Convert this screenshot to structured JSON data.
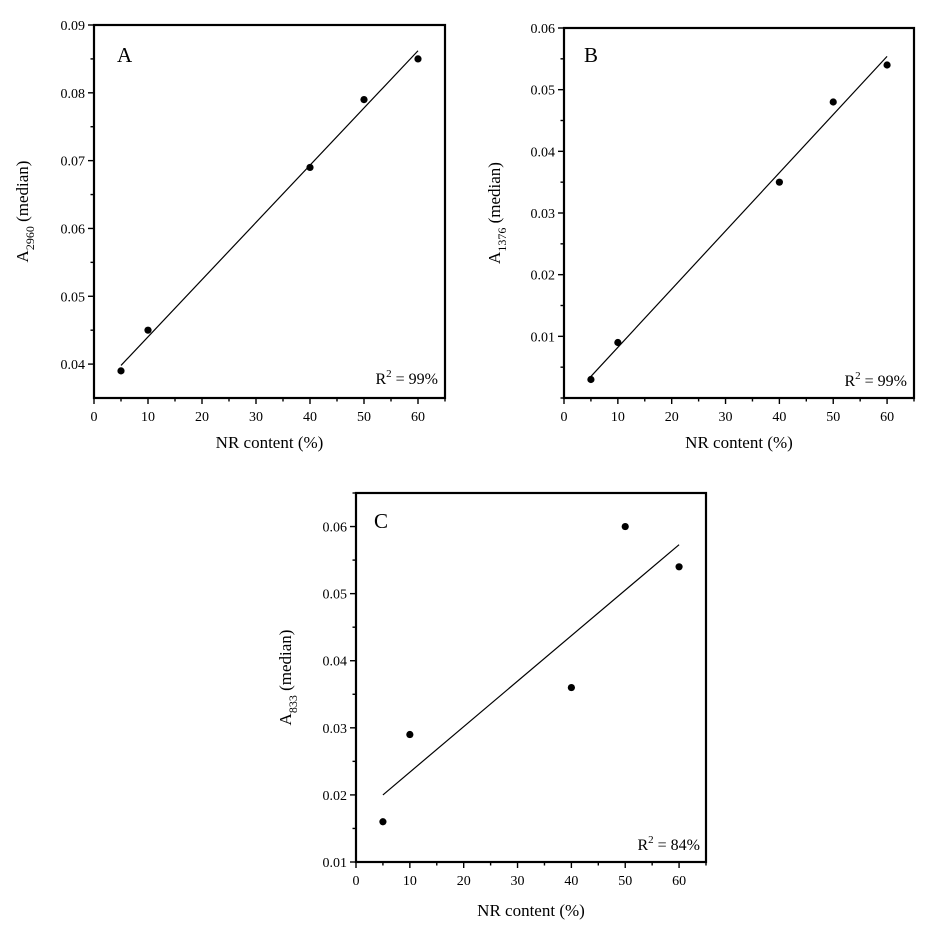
{
  "chart_data": [
    {
      "type": "scatter",
      "panel_label": "A",
      "xlabel": "NR content (%)",
      "ylabel_main": "A",
      "ylabel_sub": "2960",
      "ylabel_suffix": " (median)",
      "annotation": "R² = 99%",
      "annotation_base": "R",
      "annotation_sup": "2",
      "annotation_rest": " = 99%",
      "xlim": [
        0,
        65
      ],
      "ylim": [
        0.035,
        0.09
      ],
      "x_ticks": [
        0,
        10,
        20,
        30,
        40,
        50,
        60
      ],
      "y_ticks": [
        0.04,
        0.05,
        0.06,
        0.07,
        0.08,
        0.09
      ],
      "x_tick_labels": [
        "0",
        "10",
        "20",
        "30",
        "40",
        "50",
        "60"
      ],
      "y_tick_labels": [
        "0.04",
        "0.05",
        "0.06",
        "0.07",
        "0.08",
        "0.09"
      ],
      "x": [
        5,
        10,
        40,
        50,
        60
      ],
      "y": [
        0.039,
        0.045,
        0.069,
        0.079,
        0.085
      ],
      "fit_line": {
        "x": [
          5,
          60
        ],
        "y": [
          0.0398,
          0.0862
        ]
      },
      "grid": false
    },
    {
      "type": "scatter",
      "panel_label": "B",
      "xlabel": "NR content (%)",
      "ylabel_main": "A",
      "ylabel_sub": "1376",
      "ylabel_suffix": " (median)",
      "annotation": "R² = 99%",
      "annotation_base": "R",
      "annotation_sup": "2",
      "annotation_rest": " = 99%",
      "xlim": [
        0,
        65
      ],
      "ylim": [
        0.0,
        0.06
      ],
      "x_ticks": [
        0,
        10,
        20,
        30,
        40,
        50,
        60
      ],
      "y_ticks": [
        0.01,
        0.02,
        0.03,
        0.04,
        0.05,
        0.06
      ],
      "x_tick_labels": [
        "0",
        "10",
        "20",
        "30",
        "40",
        "50",
        "60"
      ],
      "y_tick_labels": [
        "0.01",
        "0.02",
        "0.03",
        "0.04",
        "0.05",
        "0.06"
      ],
      "x": [
        5,
        10,
        40,
        50,
        60
      ],
      "y": [
        0.003,
        0.009,
        0.035,
        0.048,
        0.054
      ],
      "fit_line": {
        "x": [
          5,
          60
        ],
        "y": [
          0.0035,
          0.0554
        ]
      },
      "grid": false
    },
    {
      "type": "scatter",
      "panel_label": "C",
      "xlabel": "NR content (%)",
      "ylabel_main": "A",
      "ylabel_sub": "833",
      "ylabel_suffix": " (median)",
      "annotation": "R² = 84%",
      "annotation_base": "R",
      "annotation_sup": "2",
      "annotation_rest": " = 84%",
      "xlim": [
        0,
        65
      ],
      "ylim": [
        0.01,
        0.065
      ],
      "x_ticks": [
        0,
        10,
        20,
        30,
        40,
        50,
        60
      ],
      "y_ticks": [
        0.01,
        0.02,
        0.03,
        0.04,
        0.05,
        0.06
      ],
      "x_tick_labels": [
        "0",
        "10",
        "20",
        "30",
        "40",
        "50",
        "60"
      ],
      "y_tick_labels": [
        "0.01",
        "0.02",
        "0.03",
        "0.04",
        "0.05",
        "0.06"
      ],
      "x": [
        5,
        10,
        40,
        50,
        60
      ],
      "y": [
        0.016,
        0.029,
        0.036,
        0.06,
        0.054
      ],
      "fit_line": {
        "x": [
          5,
          60
        ],
        "y": [
          0.02,
          0.0573
        ]
      },
      "grid": false
    }
  ]
}
